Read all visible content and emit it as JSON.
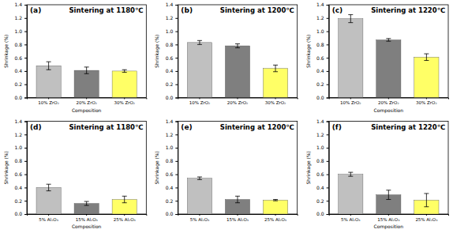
{
  "chart_data": [
    {
      "type": "bar",
      "annotation": "(a)",
      "title": "Sintering at 1180℃",
      "xlabel": "Composition",
      "ylabel": "Shrinkage (%)",
      "categories": [
        "10% ZrO₂",
        "20% ZrO₂",
        "30% ZrO₂"
      ],
      "values": [
        0.48,
        0.41,
        0.4
      ],
      "errors": [
        0.06,
        0.05,
        0.02
      ],
      "colors": [
        "#c0c0c0",
        "#7f7f7f",
        "#ffff66"
      ],
      "ylim": [
        0,
        1.4
      ],
      "yticks": [
        {
          "value": 0,
          "label": "0.0"
        },
        0.2,
        0.4,
        0.6,
        0.8,
        {
          "value": 1,
          "label": "1.0"
        },
        1.2,
        1.4
      ]
    },
    {
      "type": "bar",
      "annotation": "(b)",
      "title": "Sintering at 1200℃",
      "ylabel": "Shrinkage (%)",
      "categories": [
        "10% ZrO₂",
        "20% ZrO₂",
        "30% ZrO₂"
      ],
      "values": [
        0.83,
        0.78,
        0.44
      ],
      "errors": [
        0.03,
        0.03,
        0.05
      ],
      "colors": [
        "#c0c0c0",
        "#7f7f7f",
        "#ffff66"
      ],
      "ylim": [
        0,
        1.4
      ],
      "yticks": [
        {
          "value": 0,
          "label": "0.0"
        },
        0.2,
        0.4,
        0.6,
        0.8,
        {
          "value": 1,
          "label": "1.0"
        },
        1.2,
        1.4
      ]
    },
    {
      "type": "bar",
      "annotation": "(c)",
      "title": "Sintering at 1220℃",
      "xlabel": "Composition",
      "ylabel": "Shrinkage (%)",
      "categories": [
        "10% ZrO₂",
        "20% ZrO₂",
        "30% ZrO₂"
      ],
      "values": [
        1.19,
        0.87,
        0.61
      ],
      "errors": [
        0.06,
        0.02,
        0.05
      ],
      "colors": [
        "#c0c0c0",
        "#7f7f7f",
        "#ffff66"
      ],
      "ylim": [
        0,
        1.4
      ],
      "yticks": [
        {
          "value": 0,
          "label": "0.0"
        },
        0.2,
        0.4,
        0.6,
        0.8,
        {
          "value": 1,
          "label": "1.0"
        },
        1.2,
        1.4
      ]
    },
    {
      "type": "bar",
      "annotation": "(d)",
      "title": "Sintering at 1180℃",
      "xlabel": "Composition",
      "ylabel": "Shrinkage (%)",
      "categories": [
        "5% Al₂O₃",
        "15% Al₂O₃",
        "25% Al₂O₃"
      ],
      "values": [
        0.4,
        0.16,
        0.22
      ],
      "errors": [
        0.05,
        0.03,
        0.05
      ],
      "colors": [
        "#c0c0c0",
        "#7f7f7f",
        "#ffff66"
      ],
      "ylim": [
        0,
        1.4
      ],
      "yticks": [
        {
          "value": 0,
          "label": "0.0"
        },
        0.2,
        0.4,
        0.6,
        0.8,
        {
          "value": 1,
          "label": "1.0"
        },
        1.2,
        1.4
      ]
    },
    {
      "type": "bar",
      "annotation": "(e)",
      "title": "Sintering at 1200℃",
      "ylabel": "Shrinkage (%)",
      "categories": [
        "5% Al₂O₃",
        "15% Al₂O₃",
        "25% Al₂O₃"
      ],
      "values": [
        0.54,
        0.22,
        0.21
      ],
      "errors": [
        0.02,
        0.05,
        0.01
      ],
      "colors": [
        "#c0c0c0",
        "#7f7f7f",
        "#ffff66"
      ],
      "ylim": [
        0,
        1.4
      ],
      "yticks": [
        {
          "value": 0,
          "label": "0.0"
        },
        0.2,
        0.4,
        0.6,
        0.8,
        {
          "value": 1,
          "label": "1.0"
        },
        1.2,
        1.4
      ]
    },
    {
      "type": "bar",
      "annotation": "(f)",
      "title": "Sintering at 1220℃",
      "xlabel": "Composition",
      "ylabel": "Shrinkage (%)",
      "categories": [
        "5% Al₂O₃",
        "15% Al₂O₃",
        "25% Al₂O₃"
      ],
      "values": [
        0.6,
        0.29,
        0.21
      ],
      "errors": [
        0.03,
        0.07,
        0.1
      ],
      "colors": [
        "#c0c0c0",
        "#7f7f7f",
        "#ffff66"
      ],
      "ylim": [
        0,
        1.4
      ],
      "yticks": [
        {
          "value": 0,
          "label": "0.0"
        },
        0.2,
        0.4,
        0.6,
        0.8,
        {
          "value": 1,
          "label": "1.0"
        },
        1.2,
        1.4
      ]
    }
  ]
}
